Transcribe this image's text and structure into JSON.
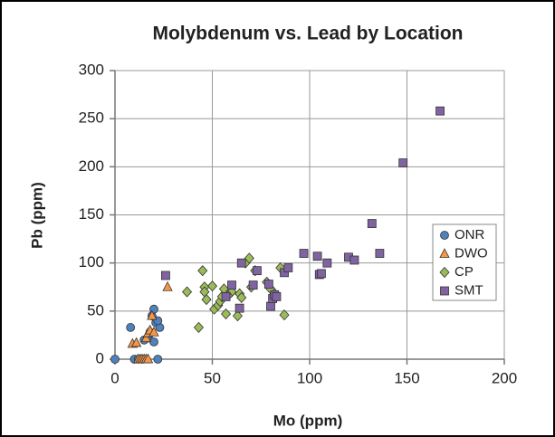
{
  "chart_data": {
    "type": "scatter",
    "title": "Molybdenum vs. Lead by Location",
    "xlabel": "Mo (ppm)",
    "ylabel": "Pb (ppm)",
    "xlim": [
      0,
      200
    ],
    "ylim": [
      0,
      300
    ],
    "xticks": [
      0,
      50,
      100,
      150,
      200
    ],
    "yticks": [
      0,
      50,
      100,
      150,
      200,
      250,
      300
    ],
    "grid": true,
    "legend": "right",
    "series": [
      {
        "name": "ONR",
        "color": "#4f81bd",
        "marker": "circle",
        "x": [
          0,
          8,
          10,
          12,
          14,
          15,
          17,
          18,
          19,
          20,
          20,
          21,
          22,
          23,
          22
        ],
        "values": [
          0,
          33,
          0,
          0,
          0,
          20,
          22,
          28,
          45,
          52,
          18,
          38,
          0,
          33,
          40
        ]
      },
      {
        "name": "DWO",
        "color": "#f79646",
        "marker": "triangle",
        "x": [
          9,
          11,
          12,
          13,
          14,
          15,
          16,
          16,
          17,
          18,
          19,
          20,
          27,
          17
        ],
        "values": [
          16,
          17,
          0,
          0,
          0,
          0,
          0,
          22,
          27,
          30,
          45,
          28,
          75,
          0
        ]
      },
      {
        "name": "CP",
        "color": "#9bbb59",
        "marker": "diamond",
        "x": [
          37,
          43,
          45,
          46,
          46,
          47,
          50,
          51,
          53,
          54,
          55,
          56,
          57,
          60,
          63,
          64,
          65,
          67,
          69,
          70,
          72,
          78,
          80,
          82,
          87,
          85,
          58
        ],
        "values": [
          70,
          33,
          92,
          75,
          70,
          62,
          76,
          52,
          56,
          60,
          65,
          73,
          47,
          70,
          45,
          68,
          64,
          100,
          105,
          75,
          92,
          80,
          73,
          68,
          46,
          95,
          66
        ]
      },
      {
        "name": "SMT",
        "color": "#8064a2",
        "marker": "square",
        "x": [
          26,
          57,
          60,
          64,
          65,
          71,
          73,
          79,
          80,
          81,
          82,
          83,
          87,
          89,
          97,
          104,
          105,
          106,
          109,
          120,
          123,
          132,
          136,
          148,
          167
        ],
        "values": [
          87,
          65,
          77,
          53,
          100,
          77,
          92,
          78,
          55,
          63,
          67,
          65,
          90,
          95,
          110,
          107,
          88,
          89,
          100,
          106,
          103,
          141,
          110,
          204,
          258
        ]
      }
    ]
  }
}
